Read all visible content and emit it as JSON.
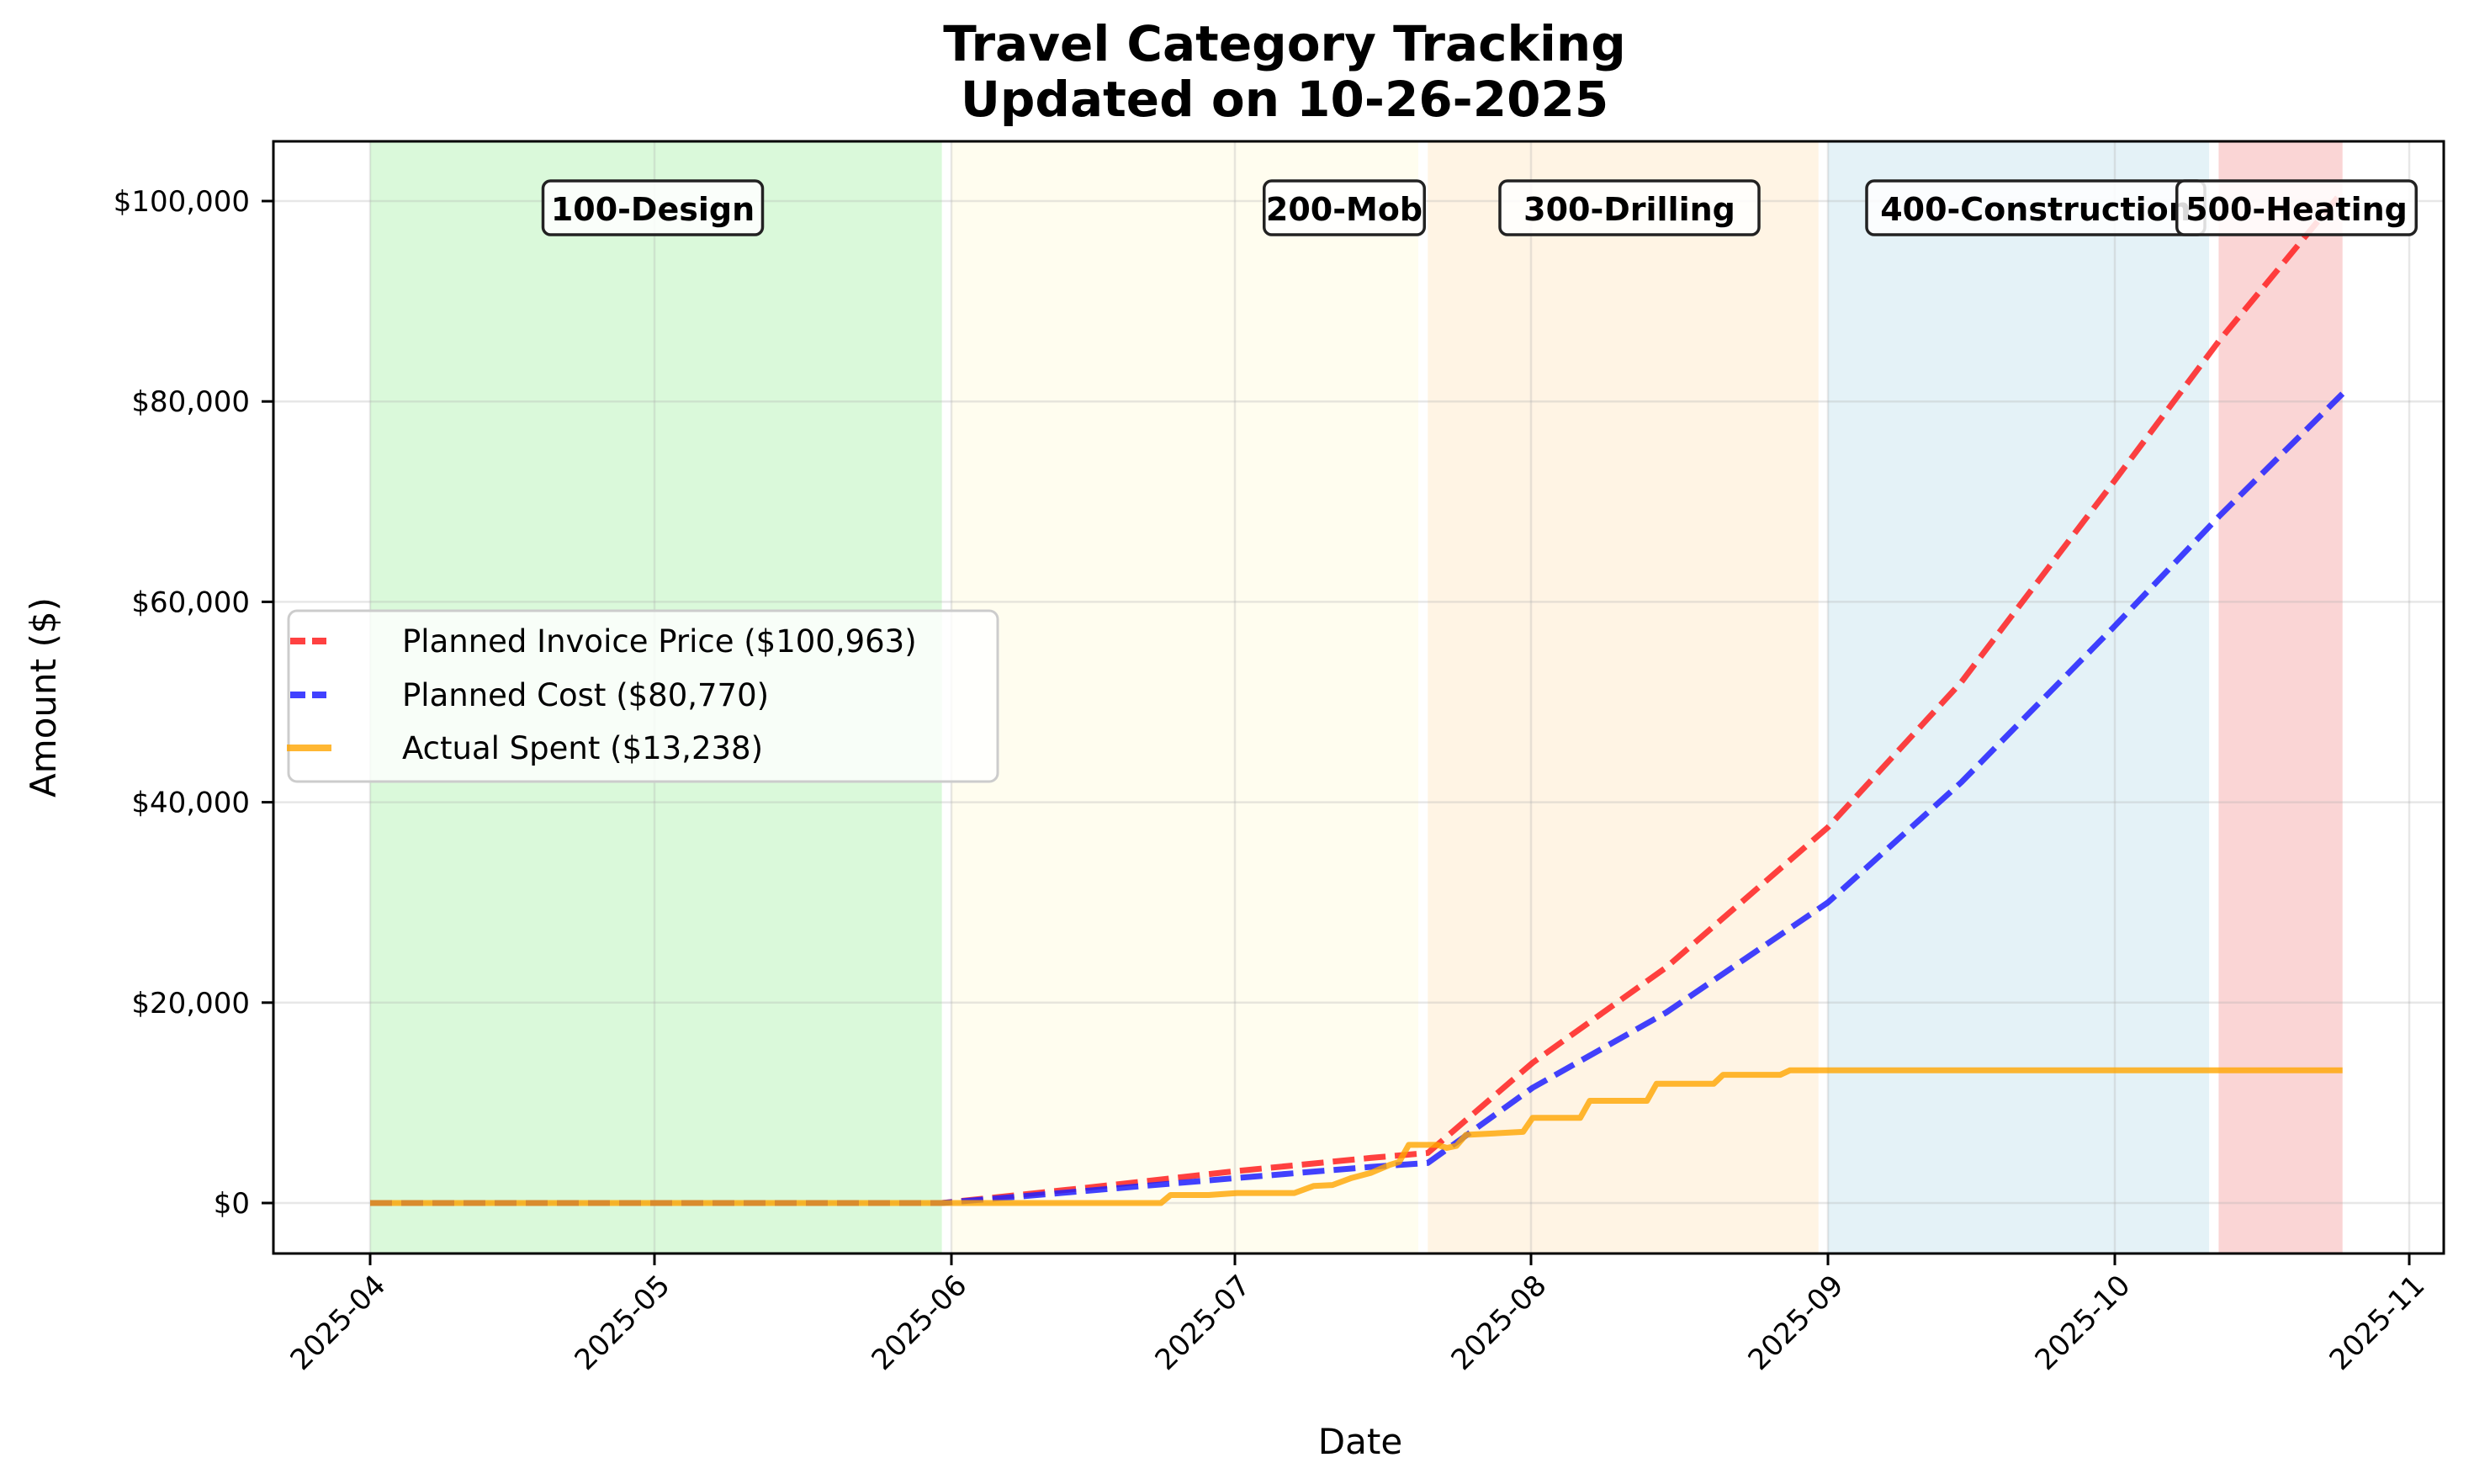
{
  "chart_data": {
    "type": "line",
    "title": "Travel Category Tracking",
    "subtitle": "Updated on 10-26-2025",
    "xlabel": "Date",
    "ylabel": "Amount ($)",
    "xlim": [
      "2025-03-22",
      "2025-11-03"
    ],
    "ylim": [
      -5300,
      106000
    ],
    "grid": true,
    "legend_position": "center left",
    "x_ticks": [
      "2025-04",
      "2025-05",
      "2025-06",
      "2025-07",
      "2025-08",
      "2025-09",
      "2025-10",
      "2025-11"
    ],
    "y_ticks": [
      {
        "value": 0,
        "label": "$0"
      },
      {
        "value": 20000,
        "label": "$20,000"
      },
      {
        "value": 40000,
        "label": "$40,000"
      },
      {
        "value": 60000,
        "label": "$60,000"
      },
      {
        "value": 80000,
        "label": "$80,000"
      },
      {
        "value": 100000,
        "label": "$100,000"
      }
    ],
    "phases": [
      {
        "label": "100-Design",
        "start": "2025-04-01",
        "end": "2025-05-31",
        "color": "#90ee90",
        "opacity": 0.33
      },
      {
        "label": "200-Mob",
        "start": "2025-06-01",
        "end": "2025-07-20",
        "color": "#fffacd",
        "opacity": 0.33
      },
      {
        "label": "300-Drilling",
        "start": "2025-07-21",
        "end": "2025-08-31",
        "color": "#ffdead",
        "opacity": 0.33
      },
      {
        "label": "400-Construction",
        "start": "2025-09-01",
        "end": "2025-10-11",
        "color": "#add8e6",
        "opacity": 0.33
      },
      {
        "label": "500-Heating",
        "start": "2025-10-12",
        "end": "2025-10-25",
        "color": "#f08080",
        "opacity": 0.33
      }
    ],
    "series": [
      {
        "name": "Planned Invoice Price ($100,963)",
        "color": "#ff2020",
        "style": "dashed",
        "points": [
          [
            "2025-04-01",
            0
          ],
          [
            "2025-05-31",
            0
          ],
          [
            "2025-06-15",
            1500
          ],
          [
            "2025-07-01",
            3200
          ],
          [
            "2025-07-15",
            4500
          ],
          [
            "2025-07-21",
            5000
          ],
          [
            "2025-08-01",
            14000
          ],
          [
            "2025-08-15",
            23500
          ],
          [
            "2025-09-01",
            37500
          ],
          [
            "2025-09-15",
            52000
          ],
          [
            "2025-10-01",
            72000
          ],
          [
            "2025-10-12",
            86000
          ],
          [
            "2025-10-25",
            100963
          ]
        ]
      },
      {
        "name": "Planned Cost ($80,770)",
        "color": "#2020ff",
        "style": "dashed",
        "points": [
          [
            "2025-04-01",
            0
          ],
          [
            "2025-05-31",
            0
          ],
          [
            "2025-06-15",
            1200
          ],
          [
            "2025-07-01",
            2500
          ],
          [
            "2025-07-15",
            3600
          ],
          [
            "2025-07-21",
            4000
          ],
          [
            "2025-08-01",
            11500
          ],
          [
            "2025-08-15",
            19000
          ],
          [
            "2025-09-01",
            30000
          ],
          [
            "2025-09-15",
            42000
          ],
          [
            "2025-10-01",
            57500
          ],
          [
            "2025-10-12",
            68500
          ],
          [
            "2025-10-25",
            80770
          ]
        ]
      },
      {
        "name": "Actual Spent ($13,238)",
        "color": "#ffa500",
        "style": "solid",
        "points": [
          [
            "2025-04-01",
            0
          ],
          [
            "2025-06-23",
            0
          ],
          [
            "2025-06-24",
            800
          ],
          [
            "2025-06-28",
            800
          ],
          [
            "2025-07-01",
            1000
          ],
          [
            "2025-07-07",
            1000
          ],
          [
            "2025-07-09",
            1700
          ],
          [
            "2025-07-11",
            1800
          ],
          [
            "2025-07-13",
            2500
          ],
          [
            "2025-07-15",
            3000
          ],
          [
            "2025-07-17",
            3800
          ],
          [
            "2025-07-18",
            4100
          ],
          [
            "2025-07-19",
            5800
          ],
          [
            "2025-07-22",
            5800
          ],
          [
            "2025-07-23",
            5500
          ],
          [
            "2025-07-24",
            5700
          ],
          [
            "2025-07-25",
            6800
          ],
          [
            "2025-07-31",
            7100
          ],
          [
            "2025-08-01",
            8500
          ],
          [
            "2025-08-06",
            8500
          ],
          [
            "2025-08-07",
            10200
          ],
          [
            "2025-08-13",
            10200
          ],
          [
            "2025-08-14",
            11900
          ],
          [
            "2025-08-20",
            11900
          ],
          [
            "2025-08-21",
            12800
          ],
          [
            "2025-08-27",
            12800
          ],
          [
            "2025-08-28",
            13238
          ],
          [
            "2025-10-25",
            13238
          ]
        ]
      }
    ],
    "annotations": [
      "100-Design",
      "200-Mob",
      "300-Drilling",
      "400-Construction",
      "500-Heating"
    ]
  },
  "legend": {
    "items": [
      {
        "label": "Planned Invoice Price ($100,963)",
        "color": "#ff2020",
        "style": "dashed"
      },
      {
        "label": "Planned Cost ($80,770)",
        "color": "#2020ff",
        "style": "dashed"
      },
      {
        "label": "Actual Spent ($13,238)",
        "color": "#ffa500",
        "style": "solid"
      }
    ]
  }
}
